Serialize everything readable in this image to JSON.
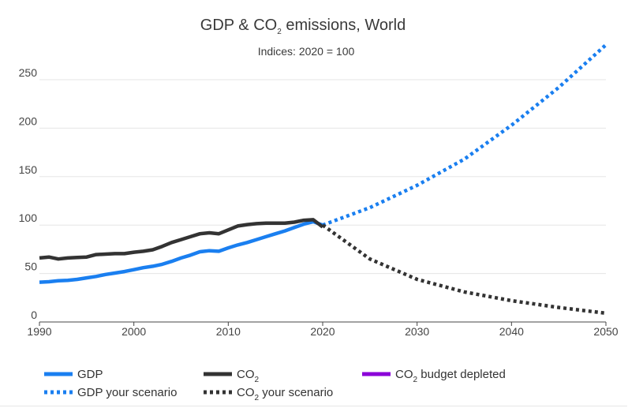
{
  "chart_data": {
    "type": "line",
    "title_main": "GDP & CO",
    "title_sub_char": "2",
    "title_tail": " emissions, World",
    "subtitle": "Indices: 2020 = 100",
    "xlim": [
      1990,
      2050
    ],
    "ylim": [
      0,
      285
    ],
    "x_ticks": [
      1990,
      2000,
      2010,
      2020,
      2030,
      2040,
      2050
    ],
    "y_ticks": [
      0,
      50,
      100,
      150,
      200,
      250
    ],
    "series": [
      {
        "key": "gdp",
        "name": "GDP",
        "color": "#1a7ff0",
        "dash": "solid",
        "x": [
          1990,
          1991,
          1992,
          1993,
          1994,
          1995,
          1996,
          1997,
          1998,
          1999,
          2000,
          2001,
          2002,
          2003,
          2004,
          2005,
          2006,
          2007,
          2008,
          2009,
          2010,
          2011,
          2012,
          2013,
          2014,
          2015,
          2016,
          2017,
          2018,
          2019,
          2020
        ],
        "values": [
          41,
          41.5,
          42.5,
          43,
          44,
          45.5,
          47,
          49,
          50.5,
          52,
          54,
          56,
          57.5,
          59.5,
          62.5,
          66,
          69,
          72.5,
          73.5,
          73,
          76.5,
          79.5,
          82,
          85,
          88,
          91,
          94,
          97.5,
          101,
          103.5,
          100
        ]
      },
      {
        "key": "co2",
        "name": "CO2",
        "name_main": "CO",
        "name_sub": "2",
        "color": "#333333",
        "dash": "solid",
        "x": [
          1990,
          1991,
          1992,
          1993,
          1994,
          1995,
          1996,
          1997,
          1998,
          1999,
          2000,
          2001,
          2002,
          2003,
          2004,
          2005,
          2006,
          2007,
          2008,
          2009,
          2010,
          2011,
          2012,
          2013,
          2014,
          2015,
          2016,
          2017,
          2018,
          2019,
          2020
        ],
        "values": [
          66,
          67,
          65,
          66,
          66.5,
          67,
          69.5,
          70,
          70.5,
          70.5,
          72,
          73,
          74.5,
          78,
          82,
          85,
          88,
          91,
          92,
          91,
          95,
          99,
          100.5,
          101.5,
          102,
          102,
          102,
          103,
          105,
          105.5,
          98
        ]
      },
      {
        "key": "co2_budget",
        "name": "CO2 budget depleted",
        "name_main": "CO",
        "name_sub": "2",
        "name_tail": " budget depleted",
        "color": "#8b00d8",
        "dash": "solid",
        "x": [],
        "values": []
      },
      {
        "key": "gdp_scenario",
        "name": "GDP your scenario",
        "color": "#1a7ff0",
        "dash": "dotted",
        "x": [
          2020,
          2025,
          2030,
          2035,
          2040,
          2045,
          2050
        ],
        "values": [
          100,
          118,
          141,
          168,
          203,
          242,
          286
        ]
      },
      {
        "key": "co2_scenario",
        "name": "CO2 your scenario",
        "name_main": "CO",
        "name_sub": "2",
        "name_tail": " your scenario",
        "color": "#333333",
        "dash": "dotted",
        "x": [
          2020,
          2025,
          2030,
          2035,
          2040,
          2045,
          2050
        ],
        "values": [
          100,
          65,
          44,
          31,
          22,
          15,
          9
        ]
      }
    ],
    "grid": true,
    "legend_position": "bottom"
  }
}
